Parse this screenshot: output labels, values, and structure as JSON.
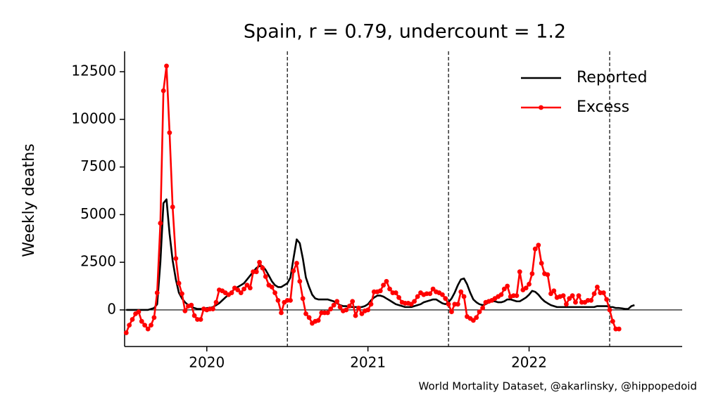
{
  "chart_data": {
    "type": "line",
    "title": "Spain, r = 0.79, undercount = 1.2",
    "ylabel": "Weekly deaths",
    "credit": "World Mortality Dataset, @akarlinsky, @hippopedoid",
    "legend": "upper right",
    "xlim": [
      2019.99,
      2023.45
    ],
    "xticks": [
      {
        "value": 2020.5,
        "label": "2020"
      },
      {
        "value": 2021.5,
        "label": "2021"
      },
      {
        "value": 2022.5,
        "label": "2022"
      }
    ],
    "vlines": [
      2021,
      2022,
      2023
    ],
    "ylim": [
      -1920,
      13570
    ],
    "yticks": [
      0,
      2500,
      5000,
      7500,
      10000,
      12500
    ],
    "x": [
      2020,
      2020.019,
      2020.038,
      2020.058,
      2020.077,
      2020.096,
      2020.115,
      2020.135,
      2020.154,
      2020.173,
      2020.192,
      2020.212,
      2020.231,
      2020.25,
      2020.269,
      2020.288,
      2020.308,
      2020.327,
      2020.346,
      2020.365,
      2020.385,
      2020.404,
      2020.423,
      2020.442,
      2020.462,
      2020.481,
      2020.5,
      2020.519,
      2020.538,
      2020.558,
      2020.577,
      2020.596,
      2020.615,
      2020.635,
      2020.654,
      2020.673,
      2020.692,
      2020.712,
      2020.731,
      2020.75,
      2020.769,
      2020.788,
      2020.808,
      2020.827,
      2020.846,
      2020.865,
      2020.885,
      2020.904,
      2020.923,
      2020.942,
      2020.962,
      2020.981,
      2021,
      2021.019,
      2021.038,
      2021.058,
      2021.077,
      2021.096,
      2021.115,
      2021.135,
      2021.154,
      2021.173,
      2021.192,
      2021.212,
      2021.231,
      2021.25,
      2021.269,
      2021.288,
      2021.308,
      2021.327,
      2021.346,
      2021.365,
      2021.385,
      2021.404,
      2021.423,
      2021.442,
      2021.462,
      2021.481,
      2021.5,
      2021.519,
      2021.538,
      2021.558,
      2021.577,
      2021.596,
      2021.615,
      2021.635,
      2021.654,
      2021.673,
      2021.692,
      2021.712,
      2021.731,
      2021.75,
      2021.769,
      2021.788,
      2021.808,
      2021.827,
      2021.846,
      2021.865,
      2021.885,
      2021.904,
      2021.923,
      2021.942,
      2021.962,
      2021.981,
      2022,
      2022.019,
      2022.038,
      2022.058,
      2022.077,
      2022.096,
      2022.115,
      2022.135,
      2022.154,
      2022.173,
      2022.192,
      2022.212,
      2022.231,
      2022.25,
      2022.269,
      2022.288,
      2022.308,
      2022.327,
      2022.346,
      2022.365,
      2022.385,
      2022.404,
      2022.423,
      2022.442,
      2022.462,
      2022.481,
      2022.5,
      2022.519,
      2022.538,
      2022.558,
      2022.577,
      2022.596,
      2022.615,
      2022.635,
      2022.654,
      2022.673,
      2022.692,
      2022.712,
      2022.731,
      2022.75,
      2022.769,
      2022.788,
      2022.808,
      2022.827,
      2022.846,
      2022.865,
      2022.885,
      2022.904,
      2022.923,
      2022.942,
      2022.962,
      2022.981,
      2023,
      2023.019,
      2023.038,
      2023.058,
      2023.077,
      2023.096,
      2023.115,
      2023.135,
      2023.154
    ],
    "series": [
      {
        "name": "Reported",
        "color": "#000000",
        "marker": false,
        "values": [
          0,
          0,
          0,
          0,
          0,
          0,
          0,
          0,
          50,
          100,
          300,
          2500,
          5600,
          5800,
          4000,
          2600,
          1600,
          900,
          600,
          400,
          250,
          150,
          100,
          50,
          50,
          50,
          100,
          100,
          150,
          250,
          350,
          500,
          650,
          800,
          950,
          1100,
          1200,
          1300,
          1400,
          1600,
          1800,
          2000,
          2200,
          2300,
          2300,
          2100,
          1800,
          1500,
          1300,
          1200,
          1200,
          1300,
          1400,
          1700,
          2700,
          3700,
          3500,
          2700,
          1700,
          1200,
          800,
          600,
          550,
          550,
          550,
          550,
          500,
          450,
          350,
          250,
          200,
          200,
          150,
          150,
          150,
          150,
          150,
          200,
          300,
          500,
          650,
          750,
          750,
          700,
          600,
          500,
          400,
          300,
          250,
          200,
          150,
          150,
          150,
          200,
          250,
          300,
          400,
          450,
          500,
          550,
          550,
          450,
          350,
          300,
          400,
          600,
          900,
          1300,
          1600,
          1650,
          1350,
          900,
          550,
          400,
          300,
          250,
          300,
          400,
          450,
          450,
          400,
          400,
          450,
          550,
          550,
          500,
          450,
          450,
          550,
          650,
          800,
          1000,
          950,
          800,
          600,
          450,
          350,
          250,
          200,
          150,
          150,
          150,
          150,
          150,
          150,
          150,
          150,
          150,
          150,
          150,
          150,
          150,
          200,
          200,
          200,
          200,
          150,
          150,
          100,
          100,
          80,
          50,
          50,
          200,
          250
        ]
      },
      {
        "name": "Excess",
        "color": "#ff0000",
        "marker": true,
        "values": [
          -1200,
          -800,
          -500,
          -200,
          -100,
          -600,
          -800,
          -1000,
          -800,
          -400,
          900,
          4550,
          11500,
          12800,
          9300,
          5400,
          2700,
          1400,
          850,
          -50,
          200,
          250,
          -300,
          -500,
          -500,
          50,
          0,
          50,
          50,
          400,
          1050,
          1000,
          900,
          800,
          900,
          1150,
          1050,
          900,
          1100,
          1300,
          1150,
          2000,
          2000,
          2500,
          2200,
          1750,
          1300,
          1200,
          900,
          500,
          -150,
          400,
          500,
          500,
          2050,
          2450,
          1500,
          600,
          -200,
          -400,
          -700,
          -600,
          -550,
          -150,
          -150,
          -150,
          50,
          250,
          450,
          150,
          -50,
          0,
          200,
          450,
          -300,
          100,
          -200,
          -50,
          0,
          300,
          950,
          950,
          1000,
          1300,
          1500,
          1100,
          900,
          900,
          650,
          400,
          350,
          350,
          300,
          450,
          700,
          900,
          800,
          850,
          850,
          1100,
          950,
          900,
          800,
          600,
          300,
          -100,
          300,
          300,
          950,
          700,
          -350,
          -450,
          -550,
          -400,
          -100,
          100,
          400,
          450,
          500,
          600,
          700,
          800,
          1100,
          1250,
          700,
          750,
          750,
          2000,
          1050,
          1150,
          1350,
          1900,
          3200,
          3400,
          2450,
          1900,
          1850,
          850,
          1000,
          650,
          700,
          750,
          300,
          600,
          750,
          400,
          750,
          400,
          400,
          500,
          500,
          850,
          1200,
          900,
          900,
          550,
          0,
          -600,
          -1000,
          -1000,
          null,
          null,
          null,
          null,
          null
        ]
      }
    ]
  }
}
